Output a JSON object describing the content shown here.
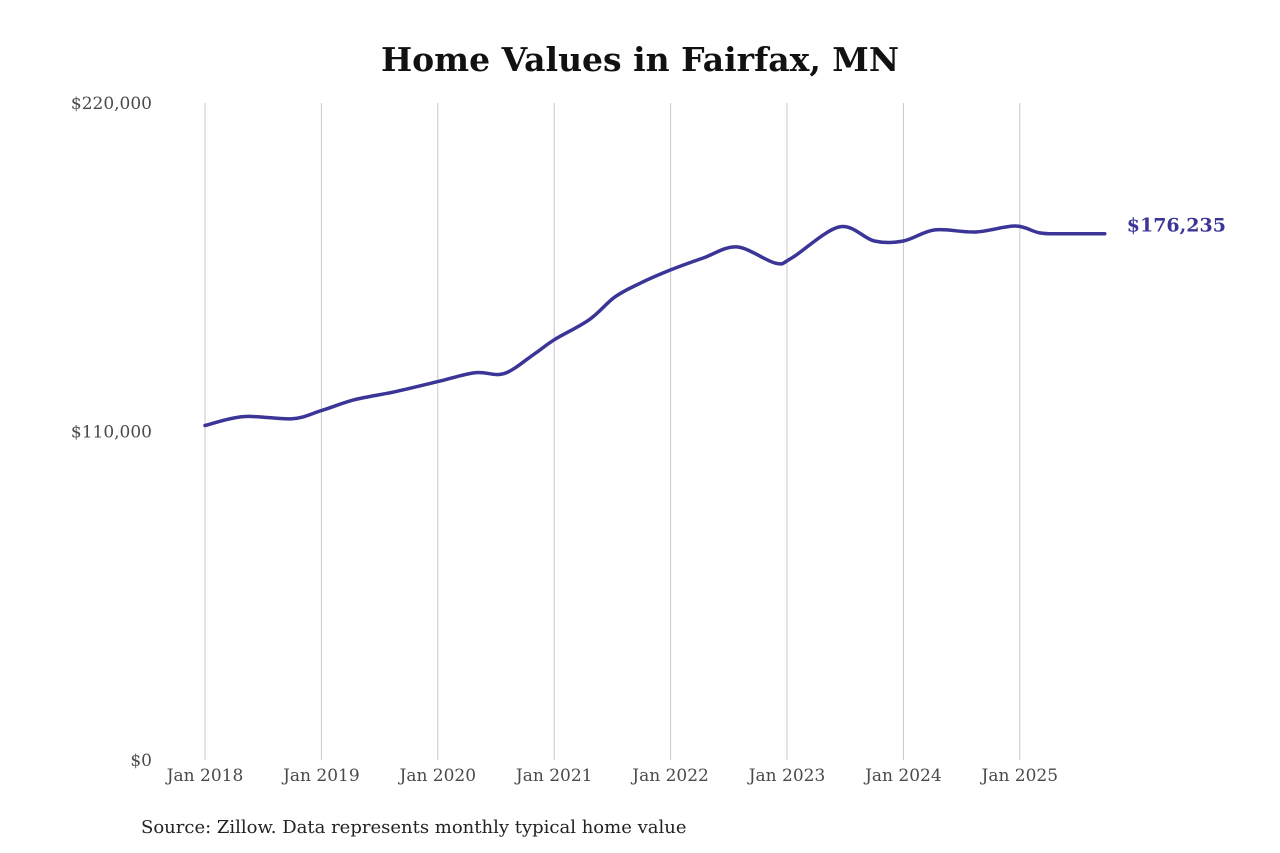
{
  "title": "Home Values in Fairfax, MN",
  "source_note": "Source: Zillow. Data represents monthly typical home value",
  "end_label": "$176,235",
  "colors": {
    "line": "#3a3596",
    "grid": "#c8c8c8",
    "text": "#4a4a4a"
  },
  "chart_data": {
    "type": "line",
    "title": "Home Values in Fairfax, MN",
    "xlabel": "",
    "ylabel": "",
    "ylim": [
      0,
      220000
    ],
    "yticks": [
      0,
      110000,
      220000
    ],
    "ytick_labels": [
      "$0",
      "$110,000",
      "$220,000"
    ],
    "xticks": [
      "Jan 2018",
      "Jan 2019",
      "Jan 2020",
      "Jan 2021",
      "Jan 2022",
      "Jan 2023",
      "Jan 2024",
      "Jan 2025"
    ],
    "grid": {
      "vertical": true,
      "horizontal": false
    },
    "legend": null,
    "series": [
      {
        "name": "Typical home value",
        "x": [
          2018.0,
          2018.33,
          2018.75,
          2019.0,
          2019.28,
          2019.63,
          2020.0,
          2020.32,
          2020.57,
          2020.83,
          2021.0,
          2021.3,
          2021.52,
          2021.73,
          2022.0,
          2022.28,
          2022.57,
          2022.9,
          2023.04,
          2023.45,
          2023.75,
          2024.0,
          2024.27,
          2024.62,
          2024.96,
          2025.17,
          2025.36,
          2025.73
        ],
        "values": [
          112000,
          115000,
          114300,
          117000,
          120600,
          123300,
          126700,
          129700,
          129400,
          136000,
          140700,
          147400,
          155000,
          159500,
          164100,
          168100,
          171800,
          166400,
          168100,
          178500,
          173800,
          173800,
          177500,
          176800,
          178800,
          176500,
          176200,
          176235
        ]
      }
    ],
    "annotations": [
      {
        "text": "$176,235",
        "x": 2025.73,
        "y": 176235
      }
    ]
  }
}
